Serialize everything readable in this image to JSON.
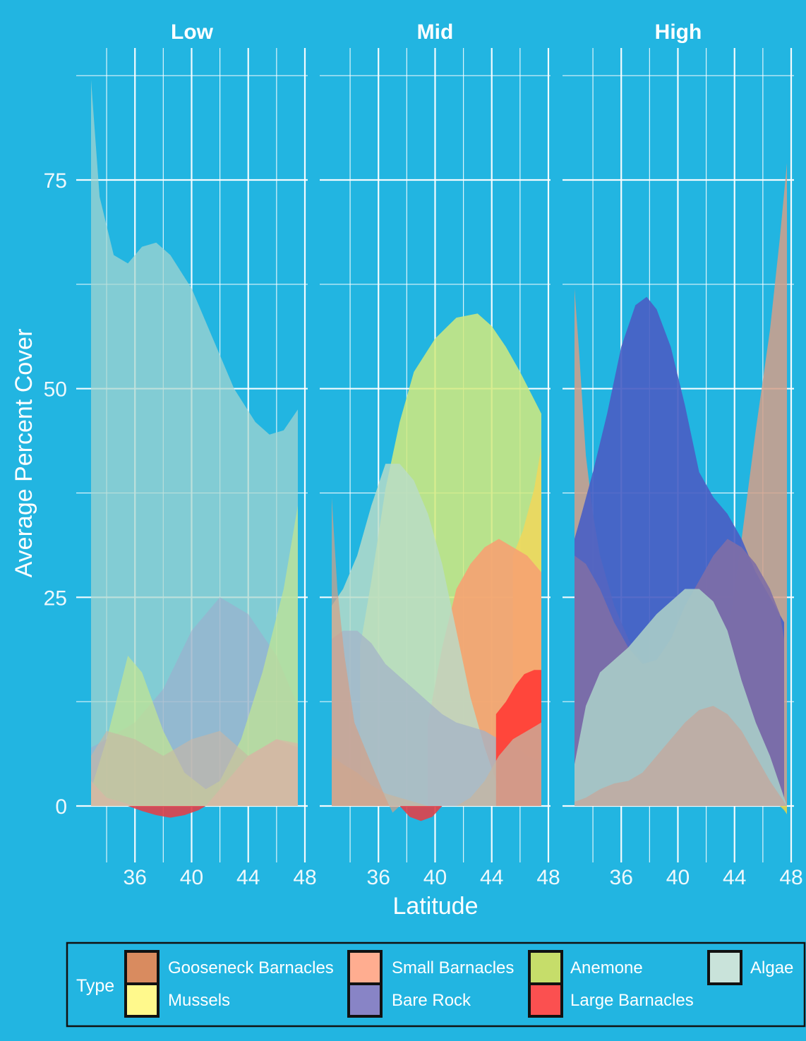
{
  "chart_data": {
    "type": "area",
    "xlabel": "Latitude",
    "ylabel": "Average Percent Cover",
    "xlim": [
      32.7,
      48
    ],
    "ylim": [
      -5,
      90
    ],
    "x_ticks": [
      "36",
      "40",
      "44",
      "48"
    ],
    "y_ticks": [
      "0",
      "25",
      "50",
      "75"
    ],
    "grid": true,
    "legend": {
      "title": "Type",
      "placement": "bottom",
      "items": [
        {
          "name": "Gooseneck Barnacles",
          "color": "#d98b5f"
        },
        {
          "name": "Mussels",
          "color": "#fff98c"
        },
        {
          "name": "Small Barnacles",
          "color": "#ffad90"
        },
        {
          "name": "Bare Rock",
          "color": "#8884c6"
        },
        {
          "name": "Anemone",
          "color": "#c6dd6a"
        },
        {
          "name": "Large Barnacles",
          "color": "#fb5050"
        },
        {
          "name": "Algae",
          "color": "#c9e3da"
        }
      ]
    },
    "facets": [
      {
        "label": "Low",
        "series": [
          {
            "name": "Algae",
            "color": "#a8d6cf",
            "opacity": 0.72,
            "x": [
              32.9,
              33.5,
              34.5,
              35.5,
              36.5,
              37.5,
              38.5,
              40,
              41.5,
              43,
              44.5,
              45.5,
              46.5,
              47.5
            ],
            "y": [
              87,
              73,
              66,
              65,
              67,
              67.5,
              66,
              62,
              56,
              50,
              46,
              44.5,
              45,
              47.5
            ]
          },
          {
            "name": "Bare Rock",
            "color": "#a3a9cc",
            "opacity": 0.55,
            "x": [
              32.9,
              34,
              36,
              38,
              40,
              42,
              44,
              46,
              47.5
            ],
            "y": [
              7,
              8,
              10,
              14,
              21,
              25,
              23,
              18,
              12
            ]
          },
          {
            "name": "Anemone",
            "color": "#c2e491",
            "opacity": 0.72,
            "x": [
              32.9,
              34,
              35.5,
              36.5,
              38,
              39.5,
              41,
              42,
              43.5,
              45,
              46.5,
              47.5
            ],
            "y": [
              2,
              8,
              18,
              16,
              9,
              4,
              2,
              3,
              8,
              16,
              26,
              36
            ]
          },
          {
            "name": "Gooseneck Barnacles",
            "color": "#c9b5a3",
            "opacity": 0.6,
            "x": [
              32.9,
              34,
              36,
              38,
              40,
              42,
              44,
              46,
              47.5
            ],
            "y": [
              6,
              9,
              8,
              6,
              8,
              9,
              6,
              8,
              7
            ]
          },
          {
            "name": "Small Barnacles",
            "color": "#d8b7a4",
            "opacity": 0.7,
            "x": [
              32.9,
              34,
              36,
              38,
              40,
              41,
              42,
              44,
              46,
              47.5
            ],
            "y": [
              3,
              1,
              0,
              0,
              0,
              0,
              2,
              6,
              8,
              7.5
            ]
          },
          {
            "name": "Large Barnacles",
            "color": "#e0404a",
            "opacity": 0.9,
            "x": [
              35.5,
              36.5,
              37.5,
              38.5,
              39.5,
              40.5,
              41
            ],
            "y": [
              0,
              -0.6,
              -1.1,
              -1.4,
              -1.1,
              -0.5,
              0
            ]
          }
        ]
      },
      {
        "label": "Mid",
        "series": [
          {
            "name": "Anemone",
            "color": "#d2ea7c",
            "opacity": 0.85,
            "x": [
              34.7,
              35.5,
              36.5,
              37.5,
              38.5,
              40,
              41.5,
              43,
              44,
              45,
              46,
              47.5
            ],
            "y": [
              19,
              27,
              38,
              46,
              52,
              56,
              58.5,
              59,
              57.5,
              55,
              52,
              47
            ]
          },
          {
            "name": "Mussels",
            "color": "#f0d75a",
            "opacity": 0.85,
            "x": [
              45.5,
              46.2,
              47,
              47.5
            ],
            "y": [
              30,
              33,
              38,
              43
            ]
          },
          {
            "name": "Small Barnacles",
            "color": "#f6a272",
            "opacity": 0.9,
            "x": [
              39.5,
              40.5,
              41.5,
              42.5,
              43.5,
              44.5,
              45.5,
              46.5,
              47.5
            ],
            "y": [
              10,
              19,
              26,
              29,
              31,
              32,
              31,
              30,
              28
            ]
          },
          {
            "name": "Algae",
            "color": "#b9dcc8",
            "opacity": 0.82,
            "x": [
              32.7,
              33.5,
              34.5,
              35.5,
              36.5,
              37.5,
              38.5,
              39.5,
              40.5,
              41.5,
              42.5,
              43.5,
              44.5
            ],
            "y": [
              24,
              26,
              30,
              36,
              41,
              41,
              39,
              35,
              29,
              21,
              13,
              7,
              2
            ]
          },
          {
            "name": "Bare Rock",
            "color": "#a4b3c8",
            "opacity": 0.75,
            "x": [
              32.7,
              33.5,
              34.5,
              35.5,
              36.5,
              37.5,
              38.5,
              39.5,
              40.5,
              41.5,
              42.5,
              43.5,
              44.5,
              45.5,
              46.5,
              47.5
            ],
            "y": [
              20,
              21,
              21,
              19.5,
              17,
              15.5,
              14,
              12.5,
              11,
              10,
              9.5,
              9,
              8,
              7.5,
              6,
              5.5
            ]
          },
          {
            "name": "Large Barnacles",
            "color": "#ff4038",
            "opacity": 0.95,
            "x": [
              44.3,
              45,
              45.7,
              46.3,
              47,
              47.5
            ],
            "y": [
              11,
              12.5,
              14.5,
              15.8,
              16.3,
              16.3
            ]
          },
          {
            "name": "Gooseneck Barnacles",
            "color": "#c6b6a2",
            "opacity": 0.75,
            "x": [
              32.7,
              33.5,
              34.5,
              35.5,
              36.5,
              37.5,
              38.5,
              39.5,
              40.5,
              41.5,
              42.5,
              43.5,
              44.5,
              45.5,
              46.5,
              47.5
            ],
            "y": [
              6,
              5,
              4,
              2.5,
              1.5,
              1,
              0.5,
              0,
              0,
              0,
              1,
              3,
              6,
              8,
              9,
              10
            ]
          },
          {
            "name": "Small Barnacles",
            "color": "#d39f88",
            "opacity": 0.7,
            "x": [
              32.7,
              33.1,
              33.6,
              34.3,
              35.5,
              36.5,
              37,
              37.5
            ],
            "y": [
              37,
              26,
              18,
              10,
              5,
              1,
              -0.8,
              0
            ]
          },
          {
            "name": "Large Barnacles",
            "color": "#e0404a",
            "opacity": 0.9,
            "x": [
              37.5,
              38.2,
              39,
              39.8,
              40.5
            ],
            "y": [
              0,
              -1.3,
              -1.8,
              -1.3,
              0
            ]
          }
        ]
      },
      {
        "label": "High",
        "series": [
          {
            "name": "Small Barnacles",
            "color": "#d39f88",
            "opacity": 0.85,
            "x": [
              32.7,
              33,
              33.5,
              34,
              34.5,
              35,
              35.5,
              36.5,
              38,
              40,
              42,
              43.5,
              44.5,
              45.5,
              46.5,
              47.2,
              47.7
            ],
            "y": [
              62,
              55,
              42,
              35,
              30,
              27,
              24,
              20,
              16,
              12,
              10,
              20,
              32,
              45,
              57,
              68,
              77
            ]
          },
          {
            "name": "Bare Rock",
            "color": "#4a5fc4",
            "opacity": 0.92,
            "x": [
              32.7,
              33.2,
              34,
              35,
              36,
              37,
              37.8,
              38.5,
              39.5,
              40.5,
              41.5,
              42.5,
              43.5,
              44.5,
              45.5,
              46.5,
              47.5
            ],
            "y": [
              32,
              35,
              40,
              47,
              55,
              60,
              61,
              59.5,
              55,
              48,
              40,
              37,
              35,
              32,
              28,
              25,
              22
            ]
          },
          {
            "name": "Bare Rock",
            "color": "#7e6ea6",
            "opacity": 0.9,
            "x": [
              32.7,
              33.5,
              34.5,
              35.5,
              36.5,
              37.5,
              38.5,
              39.5,
              40.5,
              41.5,
              42.5,
              43.5,
              44.5,
              45.5,
              46.5,
              47.2,
              47.5
            ],
            "y": [
              30,
              29,
              26,
              22,
              19,
              17,
              17.5,
              20,
              24,
              27,
              30,
              32,
              31,
              29,
              26,
              23,
              20
            ]
          },
          {
            "name": "Algae",
            "color": "#a9ccc8",
            "opacity": 0.9,
            "x": [
              32.7,
              33.5,
              34.5,
              35.5,
              36.5,
              37.5,
              38.5,
              39.5,
              40.5,
              41.5,
              42.5,
              43.5,
              44.5,
              45.5,
              46.5,
              47.3,
              47.7
            ],
            "y": [
              5,
              12,
              16,
              17.5,
              19,
              21,
              23,
              24.5,
              26,
              26,
              24.5,
              21,
              15,
              10,
              6,
              2,
              0
            ]
          },
          {
            "name": "Gooseneck Barnacles",
            "color": "#bfaca3",
            "opacity": 0.92,
            "x": [
              32.7,
              33.5,
              34.5,
              35.5,
              36.5,
              37.5,
              38.5,
              39.5,
              40.5,
              41.5,
              42.5,
              43.5,
              44.5,
              45.5,
              46.5,
              47.3,
              47.7
            ],
            "y": [
              0.5,
              1,
              2,
              2.7,
              3,
              4,
              6,
              8,
              10,
              11.5,
              12,
              11,
              9,
              6,
              3,
              1,
              0
            ]
          },
          {
            "name": "Mussels",
            "color": "#e5d24a",
            "opacity": 0.9,
            "x": [
              47.2,
              47.5,
              47.7
            ],
            "y": [
              0,
              -0.5,
              -1
            ]
          }
        ]
      }
    ]
  }
}
